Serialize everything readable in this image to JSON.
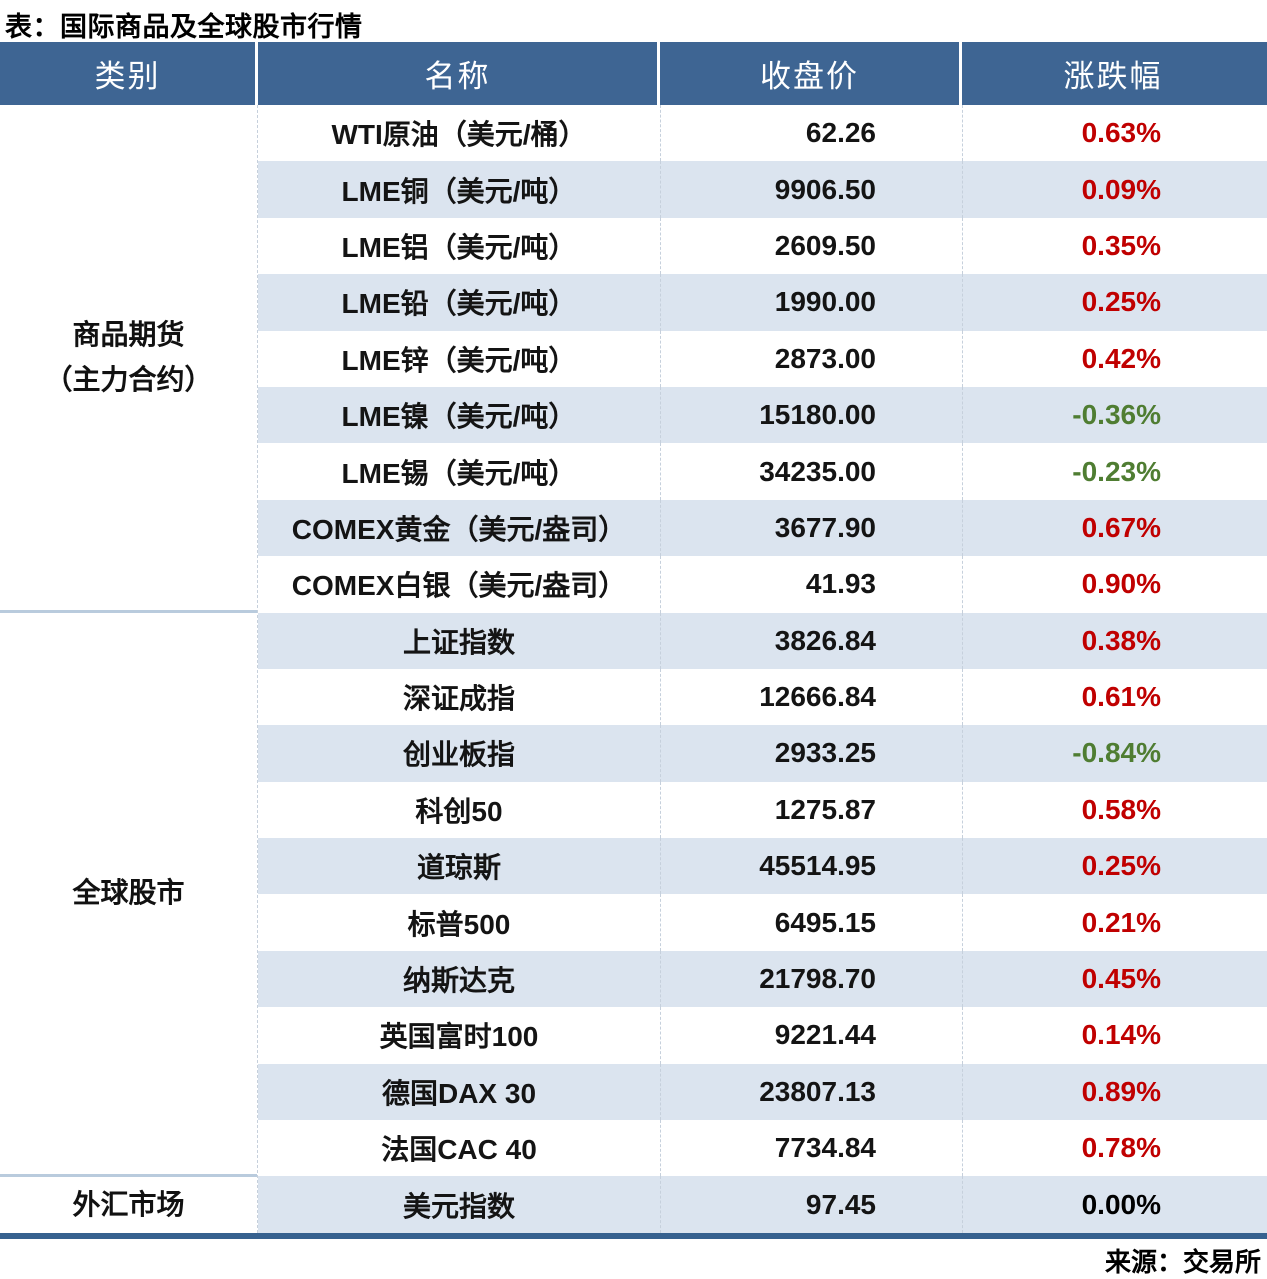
{
  "title": "表：国际商品及全球股市行情",
  "source": "来源：交易所",
  "columns": {
    "category": "类别",
    "name": "名称",
    "close": "收盘价",
    "change": "涨跌幅"
  },
  "colors": {
    "header_bg": "#3e6593",
    "row_alt": "#dbe4ef",
    "section_divider": "#b9cbdd",
    "table_border": "#36618f",
    "up": "#c00000",
    "down": "#4f7d32",
    "flat": "#000000"
  },
  "categories": [
    {
      "label_lines": [
        "商品期货",
        "（主力合约）"
      ],
      "row_span": 9
    },
    {
      "label_lines": [
        "全球股市"
      ],
      "row_span": 10
    },
    {
      "label_lines": [
        "外汇市场"
      ],
      "row_span": 1
    }
  ],
  "rows": [
    {
      "name": "WTI原油（美元/桶）",
      "close": "62.26",
      "change": "0.63%"
    },
    {
      "name": "LME铜（美元/吨）",
      "close": "9906.50",
      "change": "0.09%"
    },
    {
      "name": "LME铝（美元/吨）",
      "close": "2609.50",
      "change": "0.35%"
    },
    {
      "name": "LME铅（美元/吨）",
      "close": "1990.00",
      "change": "0.25%"
    },
    {
      "name": "LME锌（美元/吨）",
      "close": "2873.00",
      "change": "0.42%"
    },
    {
      "name": "LME镍（美元/吨）",
      "close": "15180.00",
      "change": "-0.36%"
    },
    {
      "name": "LME锡（美元/吨）",
      "close": "34235.00",
      "change": "-0.23%"
    },
    {
      "name": "COMEX黄金（美元/盎司）",
      "close": "3677.90",
      "change": "0.67%"
    },
    {
      "name": "COMEX白银（美元/盎司）",
      "close": "41.93",
      "change": "0.90%"
    },
    {
      "name": "上证指数",
      "close": "3826.84",
      "change": "0.38%"
    },
    {
      "name": "深证成指",
      "close": "12666.84",
      "change": "0.61%"
    },
    {
      "name": "创业板指",
      "close": "2933.25",
      "change": "-0.84%"
    },
    {
      "name": "科创50",
      "close": "1275.87",
      "change": "0.58%"
    },
    {
      "name": "道琼斯",
      "close": "45514.95",
      "change": "0.25%"
    },
    {
      "name": "标普500",
      "close": "6495.15",
      "change": "0.21%"
    },
    {
      "name": "纳斯达克",
      "close": "21798.70",
      "change": "0.45%"
    },
    {
      "name": "英国富时100",
      "close": "9221.44",
      "change": "0.14%"
    },
    {
      "name": "德国DAX 30",
      "close": "23807.13",
      "change": "0.89%"
    },
    {
      "name": "法国CAC 40",
      "close": "7734.84",
      "change": "0.78%"
    },
    {
      "name": "美元指数",
      "close": "97.45",
      "change": "0.00%"
    }
  ],
  "chart_data": {
    "type": "table",
    "title": "表：国际商品及全球股市行情",
    "source": "来源：交易所",
    "columns": [
      "类别",
      "名称",
      "收盘价",
      "涨跌幅"
    ],
    "groups": [
      {
        "category": "商品期货（主力合约）",
        "items": [
          {
            "name": "WTI原油（美元/桶）",
            "close": 62.26,
            "change_pct": 0.63
          },
          {
            "name": "LME铜（美元/吨）",
            "close": 9906.5,
            "change_pct": 0.09
          },
          {
            "name": "LME铝（美元/吨）",
            "close": 2609.5,
            "change_pct": 0.35
          },
          {
            "name": "LME铅（美元/吨）",
            "close": 1990.0,
            "change_pct": 0.25
          },
          {
            "name": "LME锌（美元/吨）",
            "close": 2873.0,
            "change_pct": 0.42
          },
          {
            "name": "LME镍（美元/吨）",
            "close": 15180.0,
            "change_pct": -0.36
          },
          {
            "name": "LME锡（美元/吨）",
            "close": 34235.0,
            "change_pct": -0.23
          },
          {
            "name": "COMEX黄金（美元/盎司）",
            "close": 3677.9,
            "change_pct": 0.67
          },
          {
            "name": "COMEX白银（美元/盎司）",
            "close": 41.93,
            "change_pct": 0.9
          }
        ]
      },
      {
        "category": "全球股市",
        "items": [
          {
            "name": "上证指数",
            "close": 3826.84,
            "change_pct": 0.38
          },
          {
            "name": "深证成指",
            "close": 12666.84,
            "change_pct": 0.61
          },
          {
            "name": "创业板指",
            "close": 2933.25,
            "change_pct": -0.84
          },
          {
            "name": "科创50",
            "close": 1275.87,
            "change_pct": 0.58
          },
          {
            "name": "道琼斯",
            "close": 45514.95,
            "change_pct": 0.25
          },
          {
            "name": "标普500",
            "close": 6495.15,
            "change_pct": 0.21
          },
          {
            "name": "纳斯达克",
            "close": 21798.7,
            "change_pct": 0.45
          },
          {
            "name": "英国富时100",
            "close": 9221.44,
            "change_pct": 0.14
          },
          {
            "name": "德国DAX 30",
            "close": 23807.13,
            "change_pct": 0.89
          },
          {
            "name": "法国CAC 40",
            "close": 7734.84,
            "change_pct": 0.78
          }
        ]
      },
      {
        "category": "外汇市场",
        "items": [
          {
            "name": "美元指数",
            "close": 97.45,
            "change_pct": 0.0
          }
        ]
      }
    ],
    "color_convention": "red = up, green = down (Chinese market convention)"
  }
}
